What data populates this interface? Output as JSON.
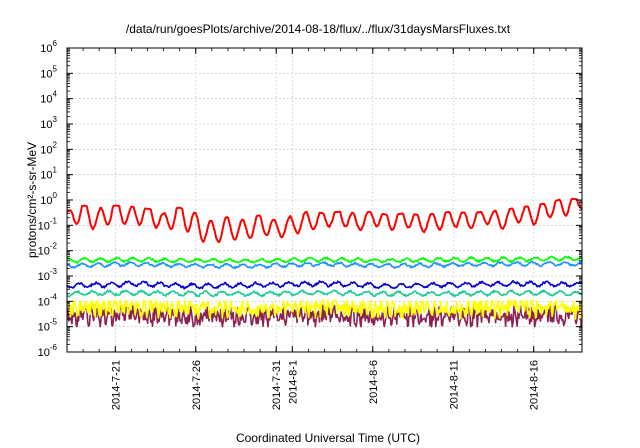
{
  "chart_data": {
    "type": "line",
    "title": "/data/run/goesPlots/archive/2014-08-18/flux/../flux/31daysMarsFluxes.txt",
    "xlabel": "Coordinated Universal Time (UTC)",
    "ylabel": "protons/cm²-s-sr-MeV",
    "yscale": "log",
    "ylim": [
      1e-06,
      1000000.0
    ],
    "xlim": [
      "2014-07-18",
      "2014-08-19"
    ],
    "grid": true,
    "y_ticks": [
      {
        "base": "10",
        "exp": "-6",
        "value": 1e-06
      },
      {
        "base": "10",
        "exp": "-5",
        "value": 1e-05
      },
      {
        "base": "10",
        "exp": "-4",
        "value": 0.0001
      },
      {
        "base": "10",
        "exp": "-3",
        "value": 0.001
      },
      {
        "base": "10",
        "exp": "-2",
        "value": 0.01
      },
      {
        "base": "10",
        "exp": "-1",
        "value": 0.1
      },
      {
        "base": "10",
        "exp": "0",
        "value": 1
      },
      {
        "base": "10",
        "exp": "1",
        "value": 10
      },
      {
        "base": "10",
        "exp": "2",
        "value": 100
      },
      {
        "base": "10",
        "exp": "3",
        "value": 1000
      },
      {
        "base": "10",
        "exp": "4",
        "value": 10000
      },
      {
        "base": "10",
        "exp": "5",
        "value": 100000
      },
      {
        "base": "10",
        "exp": "6",
        "value": 1000000
      }
    ],
    "x_ticks": [
      {
        "label": "2014-7-21",
        "date": "2014-07-21"
      },
      {
        "label": "2014-7-26",
        "date": "2014-07-26"
      },
      {
        "label": "2014-7-31",
        "date": "2014-07-31"
      },
      {
        "label": "2014-8-1",
        "date": "2014-08-01"
      },
      {
        "label": "2014-8-6",
        "date": "2014-08-06"
      },
      {
        "label": "2014-8-11",
        "date": "2014-08-11"
      },
      {
        "label": "2014-8-16",
        "date": "2014-08-16"
      }
    ],
    "series": [
      {
        "color": "#ff0000",
        "x": [
          "2014-07-18",
          "2014-07-19",
          "2014-07-20",
          "2014-07-21",
          "2014-07-22",
          "2014-07-23",
          "2014-07-24",
          "2014-07-25",
          "2014-07-26",
          "2014-07-27",
          "2014-07-28",
          "2014-07-29",
          "2014-07-30",
          "2014-07-31",
          "2014-08-01",
          "2014-08-02",
          "2014-08-03",
          "2014-08-04",
          "2014-08-05",
          "2014-08-06",
          "2014-08-07",
          "2014-08-08",
          "2014-08-09",
          "2014-08-10",
          "2014-08-11",
          "2014-08-12",
          "2014-08-13",
          "2014-08-14",
          "2014-08-15",
          "2014-08-16",
          "2014-08-17",
          "2014-08-18",
          "2014-08-19"
        ],
        "y": [
          0.2,
          0.35,
          0.15,
          0.5,
          0.2,
          0.4,
          0.12,
          0.35,
          0.1,
          0.05,
          0.08,
          0.06,
          0.12,
          0.07,
          0.1,
          0.15,
          0.18,
          0.25,
          0.12,
          0.22,
          0.15,
          0.2,
          0.12,
          0.15,
          0.2,
          0.15,
          0.25,
          0.15,
          0.3,
          0.25,
          0.5,
          0.6,
          0.9
        ],
        "min": [
          0.07,
          0.05,
          0.04,
          0.06,
          0.05,
          0.04,
          0.05,
          0.03,
          0.02,
          0.02,
          0.02,
          0.02,
          0.03,
          0.03,
          0.04,
          0.04,
          0.05,
          0.05,
          0.05,
          0.06,
          0.03,
          0.04,
          0.04,
          0.04,
          0.05,
          0.05,
          0.06,
          0.07,
          0.07,
          0.08,
          0.1,
          0.15,
          0.2
        ],
        "max": [
          0.35,
          0.6,
          0.5,
          0.6,
          0.55,
          0.45,
          0.4,
          0.5,
          0.3,
          0.25,
          0.22,
          0.2,
          0.25,
          0.2,
          0.3,
          0.35,
          0.3,
          0.35,
          0.3,
          0.35,
          0.25,
          0.3,
          0.25,
          0.3,
          0.35,
          0.3,
          0.35,
          0.4,
          0.5,
          0.6,
          0.8,
          1.2,
          1.0
        ]
      },
      {
        "color": "#00ff00",
        "x": [
          "2014-07-18",
          "2014-07-22",
          "2014-07-26",
          "2014-07-30",
          "2014-08-03",
          "2014-08-07",
          "2014-08-11",
          "2014-08-15",
          "2014-08-19"
        ],
        "y": [
          0.004,
          0.0045,
          0.004,
          0.004,
          0.0045,
          0.004,
          0.0045,
          0.0045,
          0.005
        ],
        "min": [
          0.003,
          0.003,
          0.003,
          0.003,
          0.003,
          0.003,
          0.003,
          0.003,
          0.0035
        ],
        "max": [
          0.006,
          0.006,
          0.0055,
          0.0055,
          0.006,
          0.0055,
          0.006,
          0.0065,
          0.007
        ]
      },
      {
        "color": "#1e90ff",
        "x": [
          "2014-07-18",
          "2014-07-22",
          "2014-07-26",
          "2014-07-30",
          "2014-08-03",
          "2014-08-07",
          "2014-08-11",
          "2014-08-15",
          "2014-08-19"
        ],
        "y": [
          0.0025,
          0.003,
          0.0025,
          0.0025,
          0.003,
          0.0025,
          0.0028,
          0.003,
          0.003
        ],
        "min": [
          0.0018,
          0.002,
          0.0018,
          0.0018,
          0.002,
          0.0018,
          0.002,
          0.002,
          0.002
        ],
        "max": [
          0.0035,
          0.004,
          0.0035,
          0.0035,
          0.004,
          0.0035,
          0.0038,
          0.004,
          0.004
        ]
      },
      {
        "color": "#0000cd",
        "x": [
          "2014-07-18",
          "2014-07-22",
          "2014-07-26",
          "2014-07-30",
          "2014-08-03",
          "2014-08-07",
          "2014-08-11",
          "2014-08-15",
          "2014-08-19"
        ],
        "y": [
          0.0004,
          0.0005,
          0.0004,
          0.00045,
          0.0005,
          0.0004,
          0.00045,
          0.0005,
          0.00045
        ],
        "min": [
          0.00025,
          0.0003,
          0.00025,
          0.0003,
          0.0003,
          0.00028,
          0.0003,
          0.0003,
          0.0003
        ],
        "max": [
          0.0006,
          0.0007,
          0.0006,
          0.00065,
          0.0007,
          0.0006,
          0.00065,
          0.0007,
          0.00065
        ]
      },
      {
        "color": "#20c997",
        "x": [
          "2014-07-18",
          "2014-07-22",
          "2014-07-26",
          "2014-07-30",
          "2014-08-03",
          "2014-08-07",
          "2014-08-11",
          "2014-08-15",
          "2014-08-19"
        ],
        "y": [
          0.0002,
          0.00022,
          0.0002,
          0.0002,
          0.00022,
          0.0002,
          0.0002,
          0.00022,
          0.0002
        ],
        "min": [
          0.00013,
          0.00015,
          0.00013,
          0.00014,
          0.00015,
          0.00014,
          0.00014,
          0.00015,
          0.00014
        ],
        "max": [
          0.0003,
          0.00032,
          0.0003,
          0.0003,
          0.00032,
          0.0003,
          0.0003,
          0.00032,
          0.0003
        ]
      },
      {
        "color": "#ffff00",
        "x": [
          "2014-07-18",
          "2014-07-22",
          "2014-07-26",
          "2014-07-30",
          "2014-08-03",
          "2014-08-07",
          "2014-08-11",
          "2014-08-15",
          "2014-08-19"
        ],
        "y": [
          5e-05,
          6e-05,
          5e-05,
          5e-05,
          6e-05,
          5e-05,
          5e-05,
          6e-05,
          5e-05
        ],
        "min": [
          2e-05,
          2e-05,
          2e-05,
          2e-05,
          2e-05,
          2e-05,
          2e-05,
          2e-05,
          2e-05
        ],
        "max": [
          0.0001,
          0.00011,
          0.0001,
          0.0001,
          0.00011,
          0.0001,
          0.0001,
          0.00011,
          0.0001
        ]
      },
      {
        "color": "#8b2252",
        "x": [
          "2014-07-18",
          "2014-07-22",
          "2014-07-26",
          "2014-07-30",
          "2014-08-03",
          "2014-08-07",
          "2014-08-11",
          "2014-08-15",
          "2014-08-19"
        ],
        "y": [
          2.5e-05,
          3e-05,
          2.5e-05,
          2.5e-05,
          3e-05,
          2.5e-05,
          2.5e-05,
          3e-05,
          3e-05
        ],
        "min": [
          1e-05,
          1e-05,
          1e-05,
          1e-05,
          1e-05,
          1e-05,
          1e-05,
          1e-05,
          1e-05
        ],
        "max": [
          6e-05,
          7e-05,
          6e-05,
          6e-05,
          7e-05,
          6e-05,
          6e-05,
          7e-05,
          8e-05
        ]
      }
    ]
  }
}
